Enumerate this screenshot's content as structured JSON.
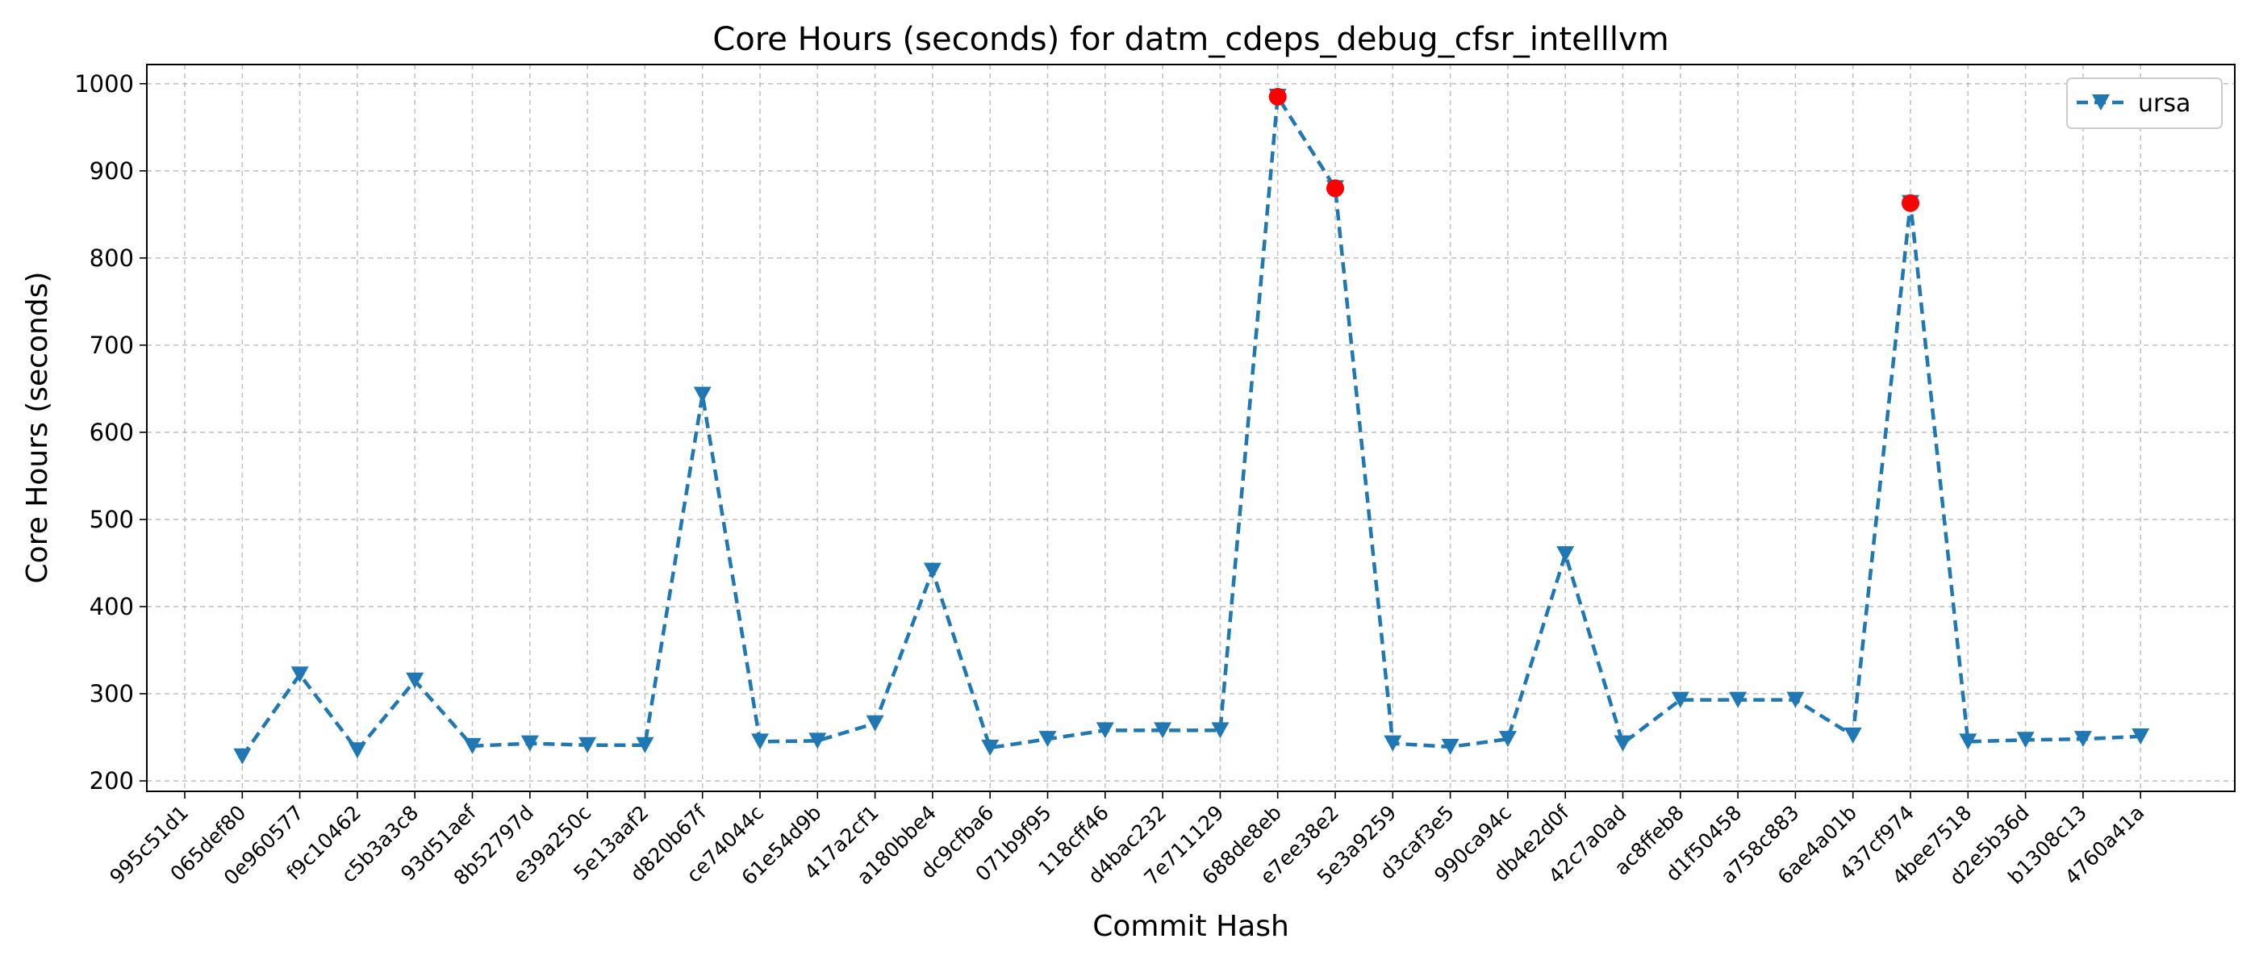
{
  "chart_data": {
    "type": "line",
    "title": "Core Hours (seconds) for datm_cdeps_debug_cfsr_intelllvm",
    "xlabel": "Commit Hash",
    "ylabel": "Core Hours (seconds)",
    "ylim": [
      188,
      1022
    ],
    "yticks": [
      200,
      300,
      400,
      500,
      600,
      700,
      800,
      900,
      1000
    ],
    "grid": true,
    "legend_position": "top-right",
    "categories": [
      "995c51d1",
      "065def80",
      "0e960577",
      "f9c10462",
      "c5b3a3c8",
      "93d51aef",
      "8b52797d",
      "e39a250c",
      "5e13aaf2",
      "d820b67f",
      "ce74044c",
      "61e54d9b",
      "417a2cf1",
      "a180bbe4",
      "dc9cfba6",
      "071b9f95",
      "118cff46",
      "d4bac232",
      "7e711129",
      "688de8eb",
      "e7ee38e2",
      "5e3a9259",
      "d3caf3e5",
      "990ca94c",
      "db4e2d0f",
      "42c7a0ad",
      "ac8ffeb8",
      "d1f50458",
      "a758c883",
      "6ae4a01b",
      "437cf974",
      "4bee7518",
      "d2e5b36d",
      "b1308c13",
      "4760a41a"
    ],
    "series": [
      {
        "name": "ursa",
        "color": "#1f77b4",
        "marker": "triangle-down",
        "linestyle": "dashed",
        "values": [
          null,
          228,
          322,
          235,
          315,
          240,
          243,
          241,
          241,
          643,
          245,
          246,
          266,
          441,
          238,
          248,
          258,
          258,
          258,
          985,
          880,
          243,
          239,
          248,
          460,
          243,
          293,
          293,
          293,
          252,
          863,
          245,
          247,
          248,
          251
        ]
      }
    ],
    "highlighted_points": {
      "color": "#ff0000",
      "categories": [
        "688de8eb",
        "e7ee38e2",
        "437cf974"
      ],
      "values": [
        985,
        880,
        863
      ]
    }
  }
}
